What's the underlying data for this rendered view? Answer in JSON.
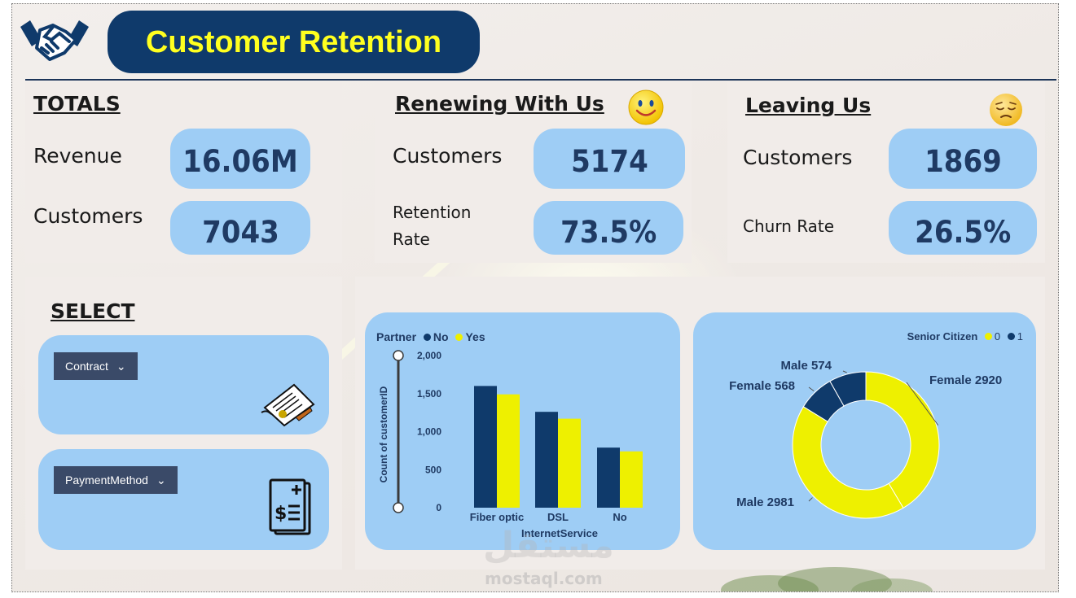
{
  "header": {
    "title": "Customer Retention"
  },
  "totals": {
    "heading": "TOTALS",
    "revenue_label": "Revenue",
    "revenue_value": "16.06M",
    "customers_label": "Customers",
    "customers_value": "7043"
  },
  "renewing": {
    "heading": "Renewing With Us",
    "customers_label": "Customers",
    "customers_value": "5174",
    "rate_label_1": "Retention",
    "rate_label_2": "Rate",
    "rate_value": "73.5%",
    "emoji": "smiley-face-icon"
  },
  "leaving": {
    "heading": "Leaving Us",
    "customers_label": "Customers",
    "customers_value": "1869",
    "rate_label": "Churn Rate",
    "rate_value": "26.5%",
    "emoji": "sad-face-icon"
  },
  "select": {
    "heading": "SELECT",
    "contract_label": "Contract",
    "payment_label": "PaymentMethod"
  },
  "colors": {
    "navy": "#0f3a6b",
    "yellow": "#eef000",
    "panel": "#9ecdf5",
    "kpi_text": "#1f3a63"
  },
  "watermark": {
    "arabic": "مستقل",
    "latin": "mostaql.com"
  },
  "chart_data": [
    {
      "type": "bar",
      "legend_title": "Partner",
      "legend_position": "top-left",
      "xlabel": "InternetService",
      "ylabel": "Count of customerID",
      "categories": [
        "Fiber optic",
        "DSL",
        "No"
      ],
      "series": [
        {
          "name": "No",
          "color": "#0f3a6b",
          "values": [
            1600,
            1260,
            790
          ]
        },
        {
          "name": "Yes",
          "color": "#eef000",
          "values": [
            1490,
            1170,
            740
          ]
        }
      ],
      "yticks": [
        "2,000",
        "1,500",
        "1,000",
        "500",
        "0"
      ],
      "ylim": [
        0,
        2000
      ]
    },
    {
      "type": "pie",
      "legend_title": "Senior Citizen",
      "legend_position": "top-right",
      "series": [
        {
          "name": "0",
          "color": "#eef000"
        },
        {
          "name": "1",
          "color": "#0f3a6b"
        }
      ],
      "slices": [
        {
          "label": "Female 2920",
          "value": 2920,
          "series": "0"
        },
        {
          "label": "Male 2981",
          "value": 2981,
          "series": "0"
        },
        {
          "label": "Female 568",
          "value": 568,
          "series": "1"
        },
        {
          "label": "Male 574",
          "value": 574,
          "series": "1"
        }
      ]
    }
  ]
}
